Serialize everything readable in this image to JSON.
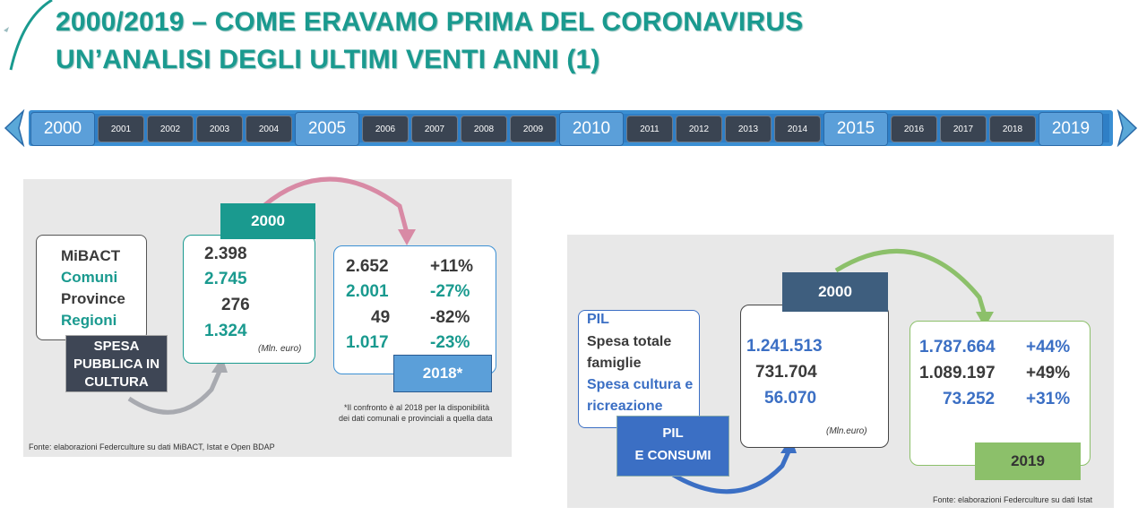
{
  "title": {
    "line1": "2000/2019 – COME ERAVAMO  PRIMA DEL CORONAVIRUS",
    "line2": "UN’ANALISI DEGLI ULTIMI VENTI ANNI (1)"
  },
  "timeline": {
    "years": [
      {
        "label": "2000",
        "major": true
      },
      {
        "label": "2001",
        "major": false
      },
      {
        "label": "2002",
        "major": false
      },
      {
        "label": "2003",
        "major": false
      },
      {
        "label": "2004",
        "major": false
      },
      {
        "label": "2005",
        "major": true
      },
      {
        "label": "2006",
        "major": false
      },
      {
        "label": "2007",
        "major": false
      },
      {
        "label": "2008",
        "major": false
      },
      {
        "label": "2009",
        "major": false
      },
      {
        "label": "2010",
        "major": true
      },
      {
        "label": "2011",
        "major": false
      },
      {
        "label": "2012",
        "major": false
      },
      {
        "label": "2013",
        "major": false
      },
      {
        "label": "2014",
        "major": false
      },
      {
        "label": "2015",
        "major": true
      },
      {
        "label": "2016",
        "major": false
      },
      {
        "label": "2017",
        "major": false
      },
      {
        "label": "2018",
        "major": false
      },
      {
        "label": "2019",
        "major": true
      }
    ]
  },
  "left": {
    "categories": [
      "MiBACT",
      "Comuni",
      "Province",
      "Regioni"
    ],
    "section_label": "SPESA PUBBLICA IN CULTURA",
    "start_year": "2000",
    "start_values": [
      "2.398",
      "2.745",
      "276",
      "1.324"
    ],
    "unit": "(Mln. euro)",
    "end_values": [
      "2.652",
      "2.001",
      "49",
      "1.017"
    ],
    "changes": [
      "+11%",
      "-27%",
      "-82%",
      "-23%"
    ],
    "end_year": "2018*",
    "footnote_line1": "*Il confronto è al 2018 per la disponibilità",
    "footnote_line2": "dei dati comunali e provinciali a quella data",
    "source": "Fonte: elaborazioni Federculture su dati MiBACT, Istat e Open BDAP"
  },
  "right": {
    "categories": [
      "PIL",
      "Spesa totale",
      "famiglie",
      "Spesa cultura e",
      "ricreazione"
    ],
    "section_label_line1": "PIL",
    "section_label_line2": "E CONSUMI",
    "start_year": "2000",
    "start_values": [
      "1.241.513",
      "731.704",
      "56.070"
    ],
    "unit": "(Mln.euro)",
    "end_values": [
      "1.787.664",
      "1.089.197",
      "73.252"
    ],
    "changes": [
      "+44%",
      "+49%",
      "+31%"
    ],
    "end_year": "2019",
    "source": "Fonte: elaborazioni Federculture su dati Istat"
  },
  "colors": {
    "teal": "#1a9a8f",
    "blue": "#3b6fc4",
    "timeline": "#2f7fc6",
    "green": "#8cc06a",
    "pink": "#d88aa5"
  }
}
